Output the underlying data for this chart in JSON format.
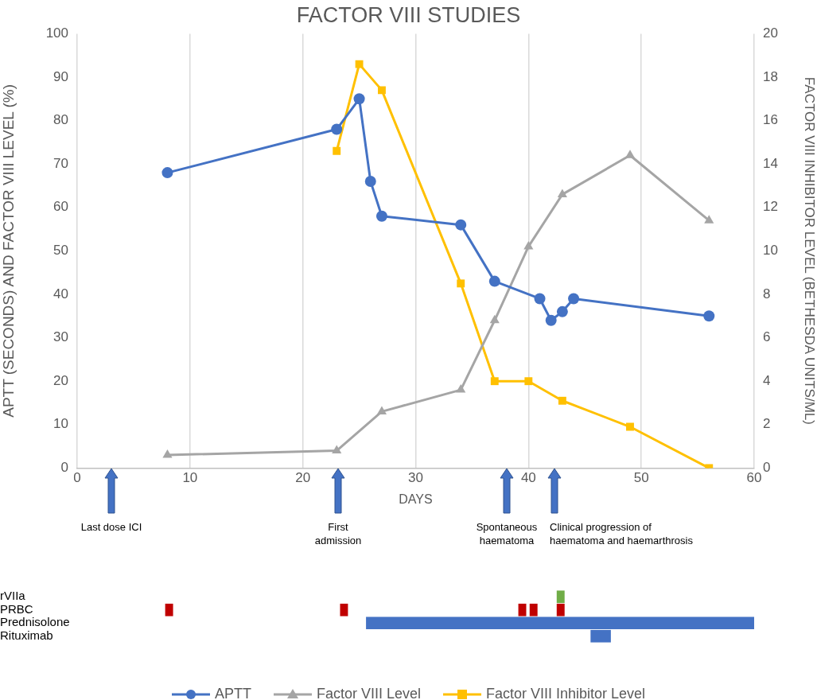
{
  "chart_data": [
    {
      "type": "line",
      "title": "FACTOR VIII STUDIES",
      "xlabel": "DAYS",
      "ylabel": "APTT (SECONDS) AND FACTOR VIII LEVEL (%)",
      "y2label": "FACTOR VIII INHIBITOR LEVEL (BETHESDA UNITS/ML)",
      "xlim": [
        0,
        60
      ],
      "xticks": [
        0,
        10,
        20,
        30,
        40,
        50,
        60
      ],
      "ylim": [
        0,
        100
      ],
      "yticks": [
        0,
        10,
        20,
        30,
        40,
        50,
        60,
        70,
        80,
        90,
        100
      ],
      "y2lim": [
        0,
        20
      ],
      "y2ticks": [
        0,
        2,
        4,
        6,
        8,
        10,
        12,
        14,
        16,
        18,
        20
      ],
      "grid": "x",
      "legend": "bottom",
      "line_style": "solid",
      "series": [
        {
          "name": "APTT",
          "color": "#4472c4",
          "marker": "circle",
          "x": [
            8,
            23,
            25,
            26,
            27,
            34,
            37,
            41,
            42,
            43,
            44,
            56
          ],
          "values": [
            68,
            78,
            85,
            66,
            58,
            56,
            43,
            39,
            34,
            36,
            39,
            35
          ]
        },
        {
          "name": "Factor VIII Level",
          "color": "#a5a5a5",
          "marker": "triangle",
          "x": [
            8,
            23,
            27,
            34,
            37,
            40,
            43,
            49,
            56
          ],
          "values": [
            3,
            4,
            13,
            18,
            34,
            51,
            63,
            72,
            57
          ]
        },
        {
          "name": "Factor VIII Inhibitor Level",
          "color": "#ffc000",
          "marker": "square",
          "axis": "y2",
          "x": [
            23,
            25,
            27,
            34,
            37,
            40,
            43,
            49,
            56
          ],
          "values": [
            14.6,
            18.6,
            17.4,
            8.5,
            4,
            4,
            3.1,
            1.9,
            0
          ]
        }
      ],
      "annotations": [
        "Last dose ICI",
        "First admission",
        "Spontaneous haematoma",
        "Clinical progression of haematoma and haemarthrosis"
      ]
    },
    {
      "type": "bar",
      "orientation": "horizontal",
      "categories": [
        "rVIIa",
        "PRBC",
        "Prednisolone",
        "Rituximab"
      ],
      "xlim": [
        0,
        60
      ],
      "tick_labels": "y",
      "grid": false,
      "series": [
        {
          "colors": [
            "#70ad47",
            "#c00000",
            "#4472c4",
            "#4472c4"
          ],
          "base": [
            42.5,
            7.8,
            25.6,
            45.5
          ],
          "values": [
            0.7,
            0.7,
            34.4,
            1.8
          ]
        },
        {
          "color": "#c00000",
          "base": [
            null,
            23.3,
            null,
            null
          ],
          "values": [
            null,
            0.7,
            null,
            null
          ]
        },
        {
          "color": "#c00000",
          "base": [
            null,
            39.1,
            null,
            null
          ],
          "values": [
            null,
            0.7,
            null,
            null
          ]
        },
        {
          "color": "#c00000",
          "base": [
            null,
            40.1,
            null,
            null
          ],
          "values": [
            null,
            0.7,
            null,
            null
          ]
        },
        {
          "color": "#c00000",
          "base": [
            null,
            42.5,
            null,
            null
          ],
          "values": [
            null,
            0.7,
            null,
            null
          ]
        }
      ]
    }
  ]
}
